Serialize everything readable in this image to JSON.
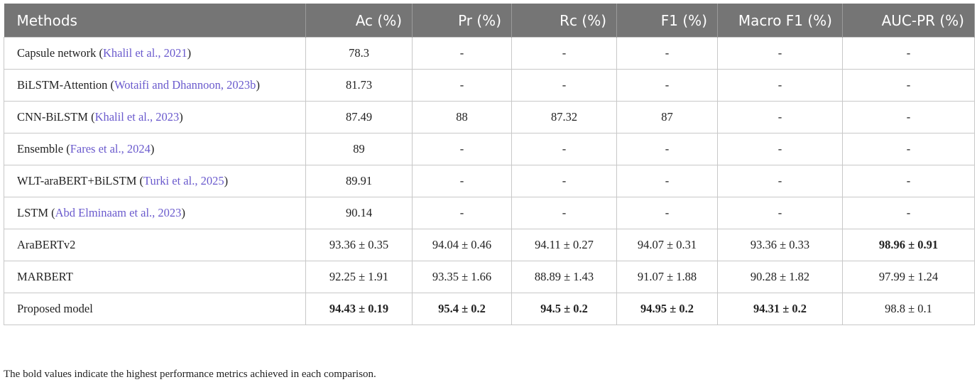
{
  "table": {
    "header": [
      "Methods",
      "Ac (%)",
      "Pr (%)",
      "Rc (%)",
      "F1 (%)",
      "Macro F1 (%)",
      "AUC-PR (%)"
    ],
    "rows": [
      [
        {
          "name": "Capsule network",
          "cite": "Khalil et al., 2021"
        },
        "78.3",
        "-",
        "-",
        "-",
        "-",
        "-"
      ],
      [
        {
          "name": "BiLSTM-Attention",
          "cite": "Wotaifi and Dhannoon, 2023b"
        },
        "81.73",
        "-",
        "-",
        "-",
        "-",
        "-"
      ],
      [
        {
          "name": "CNN-BiLSTM",
          "cite": "Khalil et al., 2023"
        },
        "87.49",
        "88",
        "87.32",
        "87",
        "-",
        "-"
      ],
      [
        {
          "name": "Ensemble",
          "cite": "Fares et al., 2024"
        },
        "89",
        "-",
        "-",
        "-",
        "-",
        "-"
      ],
      [
        {
          "name": "WLT-araBERT+BiLSTM",
          "cite": "Turki et al., 2025"
        },
        "89.91",
        "-",
        "-",
        "-",
        "-",
        "-"
      ],
      [
        {
          "name": "LSTM",
          "cite": "Abd Elminaam et al., 2023"
        },
        "90.14",
        "-",
        "-",
        "-",
        "-",
        "-"
      ],
      [
        {
          "name": "AraBERTv2"
        },
        "93.36 ± 0.35",
        "94.04 ± 0.46",
        "94.11 ± 0.27",
        "94.07 ± 0.31",
        "93.36 ± 0.33",
        "98.96 ± 0.91"
      ],
      [
        {
          "name": "MARBERT"
        },
        "92.25 ± 1.91",
        "93.35 ± 1.66",
        "88.89 ± 1.43",
        "91.07 ± 1.88",
        "90.28 ± 1.82",
        "97.99 ± 1.24"
      ],
      [
        {
          "name": "Proposed model"
        },
        "94.43 ± 0.19",
        "95.4 ± 0.2",
        "94.5 ± 0.2",
        "94.95 ± 0.2",
        "94.31 ± 0.2",
        "98.8 ± 0.1"
      ]
    ],
    "bold_cells": [
      [
        6,
        6
      ],
      [
        8,
        1
      ],
      [
        8,
        2
      ],
      [
        8,
        3
      ],
      [
        8,
        4
      ],
      [
        8,
        5
      ]
    ],
    "footnote": "The bold values indicate the highest performance metrics achieved in each comparison."
  }
}
